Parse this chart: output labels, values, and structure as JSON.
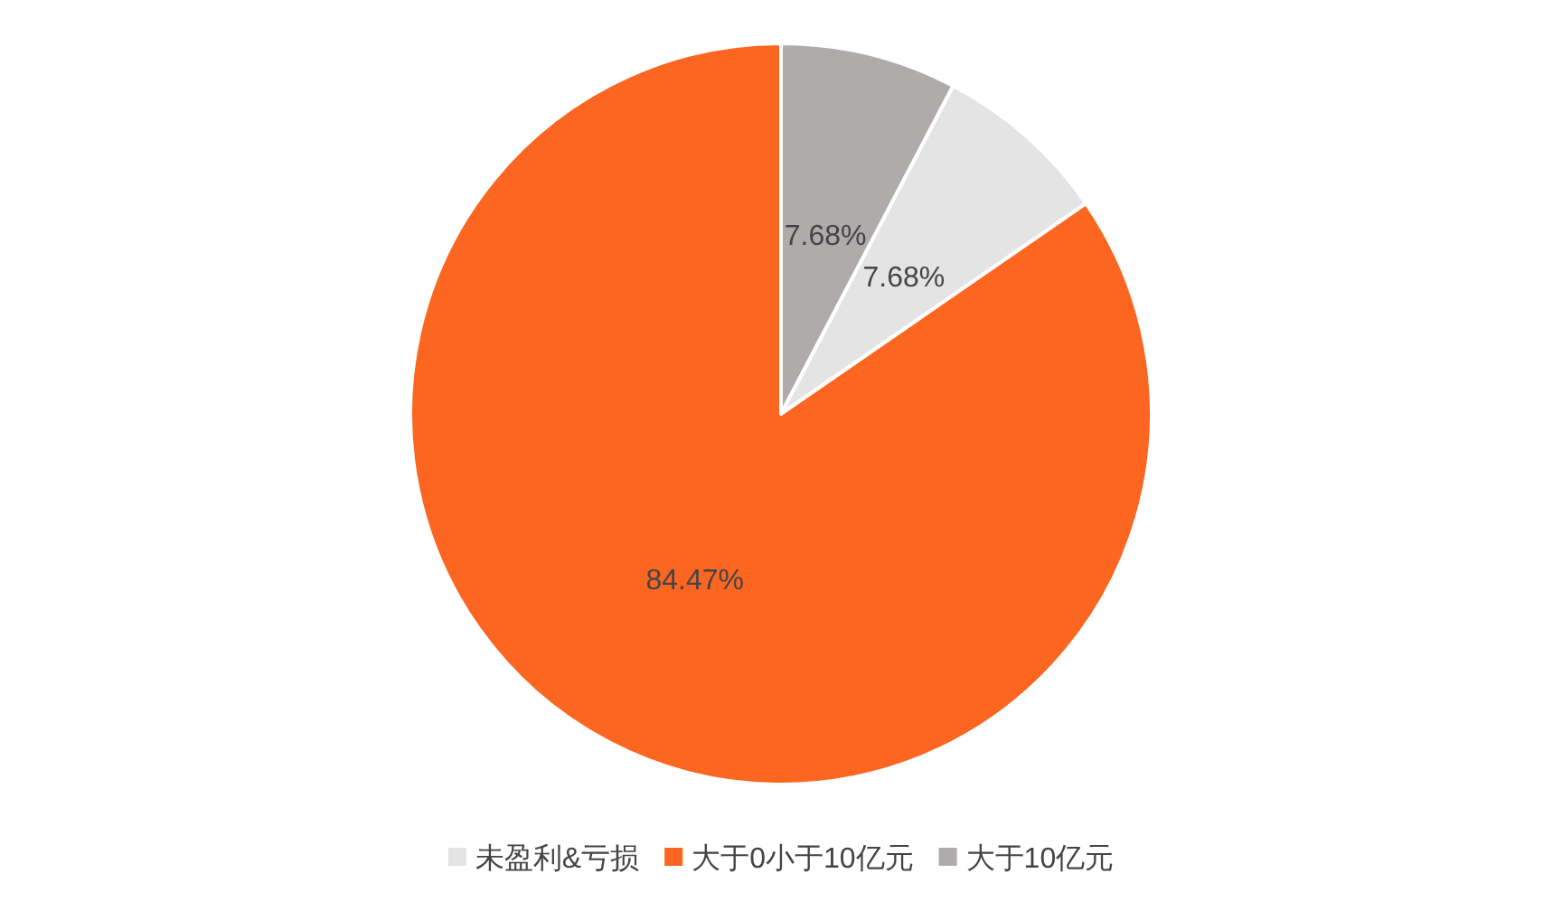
{
  "chart_data": {
    "type": "pie",
    "categories": [
      "未盈利&亏损",
      "大于0小于10亿元",
      "大于10亿元"
    ],
    "values": [
      7.68,
      84.47,
      7.68
    ],
    "value_labels": [
      "7.68%",
      "84.47%",
      "7.68%"
    ],
    "colors": [
      "#e4e4e4",
      "#fc6621",
      "#afabab"
    ],
    "legend": "bottom"
  }
}
